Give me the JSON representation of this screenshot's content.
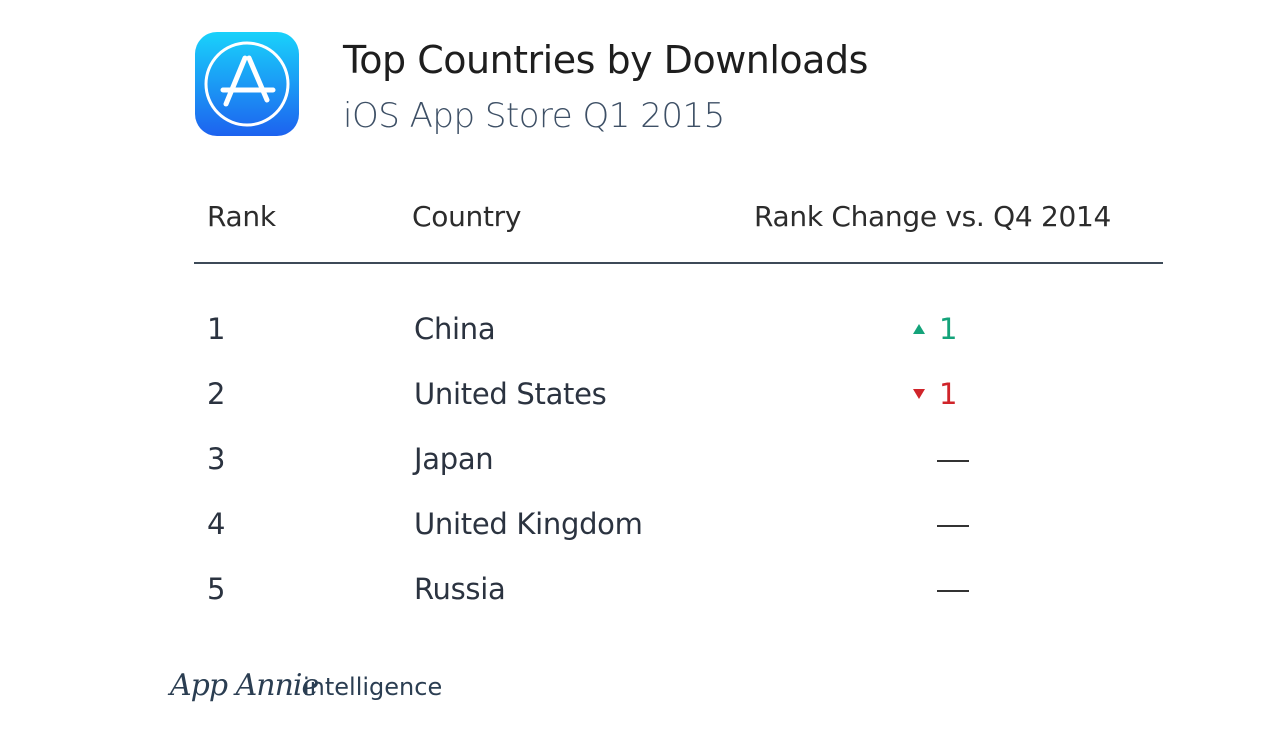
{
  "header": {
    "title": "Top Countries by Downloads",
    "subtitle": "iOS App Store Q1 2015",
    "icon": "app-store-icon"
  },
  "table": {
    "columns": [
      "Rank",
      "Country",
      "Rank Change vs. Q4 2014"
    ],
    "rows": [
      {
        "rank": "1",
        "country": "China",
        "change": "1",
        "direction": "up"
      },
      {
        "rank": "2",
        "country": "United States",
        "change": "1",
        "direction": "down"
      },
      {
        "rank": "3",
        "country": "Japan",
        "change": "—",
        "direction": "none"
      },
      {
        "rank": "4",
        "country": "United Kingdom",
        "change": "—",
        "direction": "none"
      },
      {
        "rank": "5",
        "country": "Russia",
        "change": "—",
        "direction": "none"
      }
    ]
  },
  "colors": {
    "up": "#14a37a",
    "down": "#d0242a",
    "icon_top": "#19d2fb",
    "icon_bottom": "#1d62ef"
  },
  "footer": {
    "logo": "App Annie",
    "tagline": "intelligence"
  }
}
